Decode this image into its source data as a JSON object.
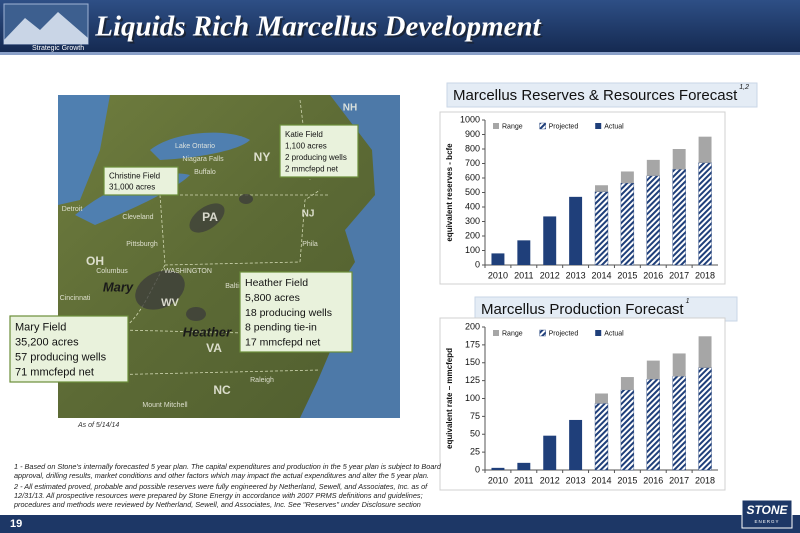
{
  "header": {
    "title": "Liquids Rich Marcellus Development",
    "section": "Strategic Growth"
  },
  "map": {
    "labels": [
      "NH",
      "NY",
      "PA",
      "NJ",
      "OH",
      "WV",
      "VA",
      "NC",
      "Mary",
      "Heather",
      "Lake Ontario",
      "Niagara Falls",
      "Buffalo",
      "Cleveland",
      "Pittsburgh",
      "Columbus",
      "Cincinnati",
      "WASHINGTON",
      "Baltimore",
      "Phila",
      "Raleigh",
      "Detroit",
      "Mount Mitchell"
    ],
    "callouts": [
      {
        "lines": [
          "Katie Field",
          "1,100 acres",
          "2 producing wells",
          "2 mmcfepd net"
        ]
      },
      {
        "lines": [
          "Christine Field",
          "31,000 acres"
        ]
      },
      {
        "lines": [
          "Heather Field",
          "5,800 acres",
          "18 producing wells",
          "8 pending tie-in",
          "17 mmcfepd net"
        ]
      },
      {
        "lines": [
          "Mary Field",
          "35,200 acres",
          "57 producing wells",
          "71 mmcfepd net"
        ]
      }
    ],
    "as_of": "As of 5/14/14"
  },
  "chart_data": [
    {
      "type": "bar",
      "stacked": true,
      "title": "Marcellus Reserves & Resources Forecast",
      "superscript": "1,2",
      "y_label": "equivalent reserves - bcfe",
      "categories": [
        "2010",
        "2011",
        "2012",
        "2013",
        "2014",
        "2015",
        "2016",
        "2017",
        "2018"
      ],
      "series": [
        {
          "name": "Range",
          "color": "#a6a6a6",
          "values": [
            null,
            null,
            null,
            null,
            45,
            80,
            110,
            140,
            180
          ]
        },
        {
          "name": "Projected",
          "color": "#1f3f7a",
          "hatch": true,
          "values": [
            null,
            null,
            null,
            null,
            505,
            565,
            615,
            660,
            705
          ]
        },
        {
          "name": "Actual",
          "color": "#1f3f7a",
          "values": [
            80,
            170,
            335,
            470,
            null,
            null,
            null,
            null,
            null
          ]
        }
      ],
      "ylim": [
        0,
        1000
      ],
      "yticks": [
        0,
        100,
        200,
        300,
        400,
        500,
        600,
        700,
        800,
        900,
        1000
      ],
      "grid": false,
      "legend": "top-left"
    },
    {
      "type": "bar",
      "stacked": true,
      "title": "Marcellus Production Forecast",
      "superscript": "1",
      "y_label": "equivalent rate – mmcfepd",
      "categories": [
        "2010",
        "2011",
        "2012",
        "2013",
        "2014",
        "2015",
        "2016",
        "2017",
        "2018"
      ],
      "series": [
        {
          "name": "Range",
          "color": "#a6a6a6",
          "values": [
            null,
            null,
            null,
            null,
            14,
            18,
            26,
            32,
            44
          ]
        },
        {
          "name": "Projected",
          "color": "#1f3f7a",
          "hatch": true,
          "values": [
            null,
            null,
            null,
            null,
            93,
            112,
            127,
            131,
            143
          ]
        },
        {
          "name": "Actual",
          "color": "#1f3f7a",
          "values": [
            3,
            10,
            48,
            70,
            null,
            null,
            null,
            null,
            null
          ]
        }
      ],
      "ylim": [
        0,
        200
      ],
      "yticks": [
        0,
        25,
        50,
        75,
        100,
        125,
        150,
        175,
        200
      ],
      "grid": false,
      "legend": "top-left"
    }
  ],
  "footnotes": [
    "1 - Based on Stone's internally forecasted 5 year plan. The capital expenditures and production in the 5 year plan is subject to Board approval, drilling results, market conditions and other factors which may impact the actual expenditures and alter the 5 year plan.",
    "2 - All estimated proved, probable and possible reserves were fully engineered by Netherland, Sewell, and Associates, Inc. as of 12/31/13. All prospective resources were prepared by Stone Energy in accordance with 2007 PRMS definitions and guidelines; procedures and methods were reviewed by Netherland, Sewell, and Associates, Inc. See \"Reserves\" under Disclosure section"
  ],
  "footer": {
    "page": "19",
    "logo": "STONE",
    "logo_sub": "ENERGY"
  }
}
